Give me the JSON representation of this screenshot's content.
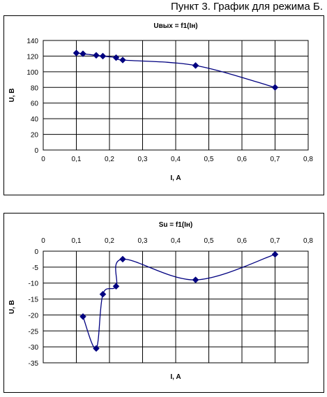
{
  "page_heading": "Пункт 3. График для режима Б.",
  "chart_data": [
    {
      "type": "line",
      "title": "Uвых = f1(Iн)",
      "xlabel": "I, A",
      "ylabel": "U, B",
      "xlim": [
        0,
        0.8
      ],
      "ylim": [
        0,
        140
      ],
      "x_ticks": [
        "0",
        "0,1",
        "0,2",
        "0,3",
        "0,4",
        "0,5",
        "0,6",
        "0,7",
        "0,8"
      ],
      "y_ticks": [
        "0",
        "20",
        "40",
        "60",
        "80",
        "100",
        "120",
        "140"
      ],
      "x_axis_position": "bottom",
      "grid": true,
      "line_color": "#000080",
      "series": [
        {
          "x": [
            0.1,
            0.12,
            0.16,
            0.18,
            0.22,
            0.24,
            0.46,
            0.7
          ],
          "y": [
            124,
            123,
            121,
            120,
            118,
            115,
            108,
            80
          ]
        }
      ]
    },
    {
      "type": "line",
      "title": "Su = f1(Iн)",
      "xlabel": "I, A",
      "ylabel": "U, B",
      "xlim": [
        0,
        0.8
      ],
      "ylim": [
        -35,
        0
      ],
      "x_ticks": [
        "0",
        "0,1",
        "0,2",
        "0,3",
        "0,4",
        "0,5",
        "0,6",
        "0,7",
        "0,8"
      ],
      "y_ticks": [
        "-35",
        "-30",
        "-25",
        "-20",
        "-15",
        "-10",
        "-5",
        "0"
      ],
      "x_axis_position": "top",
      "grid": true,
      "line_color": "#000080",
      "series": [
        {
          "x": [
            0.12,
            0.16,
            0.18,
            0.22,
            0.24,
            0.46,
            0.7
          ],
          "y": [
            -20.5,
            -30.5,
            -13.5,
            -11,
            -2.5,
            -9,
            -1
          ]
        }
      ]
    }
  ]
}
